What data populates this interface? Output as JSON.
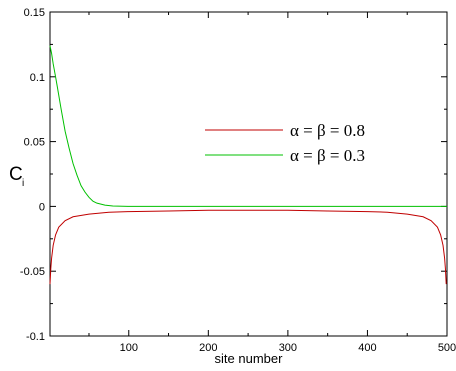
{
  "chart_data": {
    "type": "line",
    "title": "",
    "xlabel": "site number",
    "ylabel_main": "C",
    "ylabel_sub": "i",
    "xlim": [
      1,
      500
    ],
    "ylim": [
      -0.1,
      0.15
    ],
    "xticks": [
      100,
      200,
      300,
      400,
      500
    ],
    "xtick_labels": [
      "100",
      "200",
      "300",
      "400",
      "500"
    ],
    "yticks": [
      -0.1,
      -0.05,
      0,
      0.05,
      0.1,
      0.15
    ],
    "ytick_labels": [
      "-0.1",
      "-0.05",
      "0",
      "0.05",
      "0.1",
      "0.15"
    ],
    "grid": false,
    "legend_position": "center-right",
    "series": [
      {
        "name": "α = β = 0.8",
        "color": "#c00000",
        "points": [
          [
            1,
            -0.06
          ],
          [
            2,
            -0.048
          ],
          [
            3,
            -0.04
          ],
          [
            5,
            -0.03
          ],
          [
            8,
            -0.022
          ],
          [
            12,
            -0.016
          ],
          [
            20,
            -0.011
          ],
          [
            30,
            -0.008
          ],
          [
            50,
            -0.006
          ],
          [
            75,
            -0.0045
          ],
          [
            100,
            -0.004
          ],
          [
            150,
            -0.0035
          ],
          [
            200,
            -0.003
          ],
          [
            250,
            -0.003
          ],
          [
            300,
            -0.003
          ],
          [
            350,
            -0.0035
          ],
          [
            400,
            -0.004
          ],
          [
            425,
            -0.0045
          ],
          [
            450,
            -0.006
          ],
          [
            470,
            -0.008
          ],
          [
            480,
            -0.011
          ],
          [
            488,
            -0.016
          ],
          [
            492,
            -0.022
          ],
          [
            495,
            -0.03
          ],
          [
            497,
            -0.04
          ],
          [
            498,
            -0.048
          ],
          [
            499,
            -0.06
          ]
        ]
      },
      {
        "name": "α = β = 0.3",
        "color": "#00c000",
        "points": [
          [
            1,
            0.124
          ],
          [
            3,
            0.118
          ],
          [
            5,
            0.11
          ],
          [
            8,
            0.1
          ],
          [
            10,
            0.093
          ],
          [
            15,
            0.075
          ],
          [
            20,
            0.058
          ],
          [
            25,
            0.045
          ],
          [
            30,
            0.033
          ],
          [
            35,
            0.024
          ],
          [
            40,
            0.016
          ],
          [
            45,
            0.011
          ],
          [
            50,
            0.007
          ],
          [
            55,
            0.004
          ],
          [
            60,
            0.0025
          ],
          [
            70,
            0.001
          ],
          [
            80,
            0.0003
          ],
          [
            100,
            0.0
          ],
          [
            200,
            0.0
          ],
          [
            300,
            0.0
          ],
          [
            400,
            0.0
          ],
          [
            500,
            0.0
          ]
        ]
      }
    ]
  }
}
